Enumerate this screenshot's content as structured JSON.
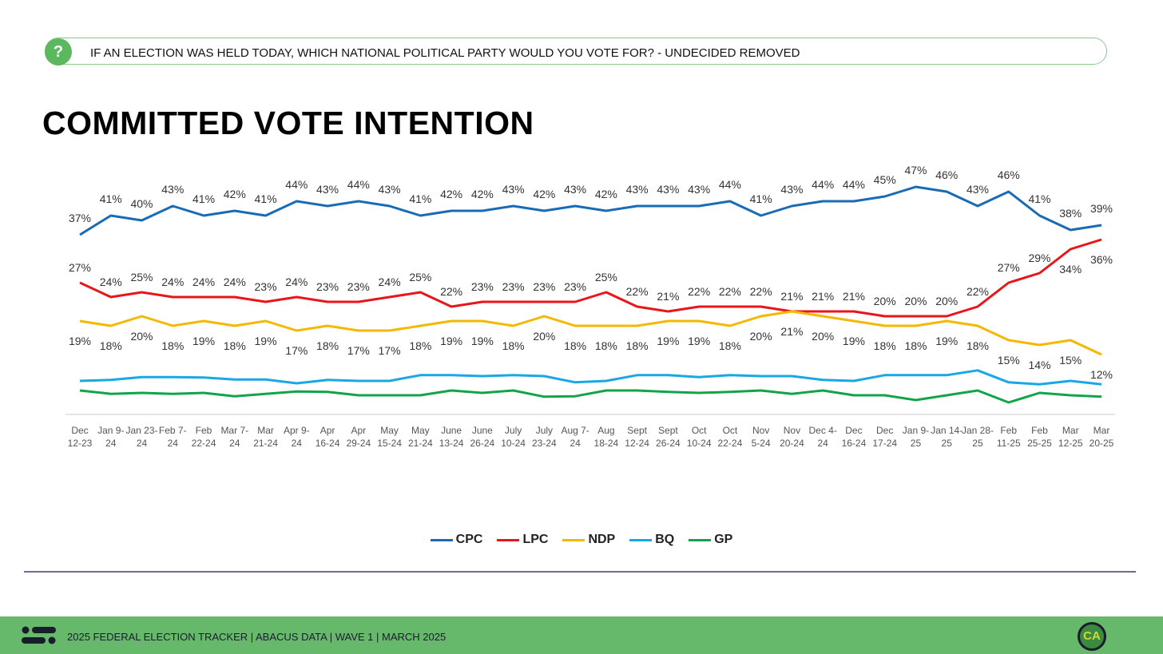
{
  "question": "IF AN ELECTION WAS HELD TODAY, WHICH NATIONAL POLITICAL PARTY WOULD YOU VOTE FOR? - UNDECIDED REMOVED",
  "footer": {
    "text": "2025 FEDERAL ELECTION TRACKER  |  ABACUS DATA  |  WAVE 1  |  MARCH 2025",
    "logo": "CA"
  },
  "chart_data": {
    "type": "line",
    "title": "COMMITTED VOTE INTENTION",
    "xlabel": "",
    "ylabel": "",
    "ylim": [
      0,
      50
    ],
    "grid": false,
    "legend": "bottom",
    "categories": [
      [
        "Dec",
        "12-23"
      ],
      [
        "Jan 9-",
        "24"
      ],
      [
        "Jan 23-",
        "24"
      ],
      [
        "Feb 7-",
        "24"
      ],
      [
        "Feb",
        "22-24"
      ],
      [
        "Mar 7-",
        "24"
      ],
      [
        "Mar",
        "21-24"
      ],
      [
        "Apr 9-",
        "24"
      ],
      [
        "Apr",
        "16-24"
      ],
      [
        "Apr",
        "29-24"
      ],
      [
        "May",
        "15-24"
      ],
      [
        "May",
        "21-24"
      ],
      [
        "June",
        "13-24"
      ],
      [
        "June",
        "26-24"
      ],
      [
        "July",
        "10-24"
      ],
      [
        "July",
        "23-24"
      ],
      [
        "Aug 7-",
        "24"
      ],
      [
        "Aug",
        "18-24"
      ],
      [
        "Sept",
        "12-24"
      ],
      [
        "Sept",
        "26-24"
      ],
      [
        "Oct",
        "10-24"
      ],
      [
        "Oct",
        "22-24"
      ],
      [
        "Nov",
        "5-24"
      ],
      [
        "Nov",
        "20-24"
      ],
      [
        "Dec 4-",
        "24"
      ],
      [
        "Dec",
        "16-24"
      ],
      [
        "Dec",
        "17-24"
      ],
      [
        "Jan 9-",
        "25"
      ],
      [
        "Jan 14-",
        "25"
      ],
      [
        "Jan 28-",
        "25"
      ],
      [
        "Feb",
        "11-25"
      ],
      [
        "Feb",
        "25-25"
      ],
      [
        "Mar",
        "12-25"
      ],
      [
        "Mar",
        "20-25"
      ]
    ],
    "series": [
      {
        "name": "CPC",
        "color": "#1a6bb5",
        "labeled": true,
        "values": [
          37,
          41,
          40,
          43,
          41,
          42,
          41,
          44,
          43,
          44,
          43,
          41,
          42,
          42,
          43,
          42,
          43,
          42,
          43,
          43,
          43,
          44,
          41,
          43,
          44,
          44,
          45,
          47,
          46,
          43,
          46,
          41,
          38,
          39
        ]
      },
      {
        "name": "LPC",
        "color": "#e8161b",
        "labeled": true,
        "values": [
          27,
          24,
          25,
          24,
          24,
          24,
          23,
          24,
          23,
          23,
          24,
          25,
          22,
          23,
          23,
          23,
          23,
          25,
          22,
          21,
          22,
          22,
          22,
          21,
          21,
          21,
          20,
          20,
          20,
          22,
          27,
          29,
          34,
          36
        ]
      },
      {
        "name": "NDP",
        "color": "#f5b800",
        "labeled": true,
        "values": [
          19,
          18,
          20,
          18,
          19,
          18,
          19,
          17,
          18,
          17,
          17,
          18,
          19,
          19,
          18,
          20,
          18,
          18,
          18,
          19,
          19,
          18,
          20,
          21,
          20,
          19,
          18,
          18,
          19,
          18,
          15,
          14,
          15,
          12
        ]
      },
      {
        "name": "BQ",
        "color": "#1aa7e6",
        "labeled": false,
        "values": [
          6.5,
          6.7,
          7.3,
          7.3,
          7.2,
          6.8,
          6.8,
          6,
          6.7,
          6.5,
          6.5,
          7.7,
          7.7,
          7.5,
          7.7,
          7.5,
          6.2,
          6.5,
          7.7,
          7.7,
          7.3,
          7.7,
          7.5,
          7.5,
          6.7,
          6.5,
          7.7,
          7.7,
          7.7,
          8.7,
          6.2,
          5.8,
          6.5,
          5.8
        ]
      },
      {
        "name": "GP",
        "color": "#13a44a",
        "labeled": false,
        "values": [
          4.5,
          3.8,
          4,
          3.8,
          4,
          3.3,
          3.8,
          4.3,
          4.2,
          3.5,
          3.5,
          3.5,
          4.5,
          4,
          4.5,
          3.2,
          3.3,
          4.5,
          4.5,
          4.2,
          4,
          4.2,
          4.5,
          3.8,
          4.5,
          3.5,
          3.5,
          2.5,
          3.5,
          4.5,
          2,
          4,
          3.5,
          3.2
        ]
      }
    ]
  }
}
